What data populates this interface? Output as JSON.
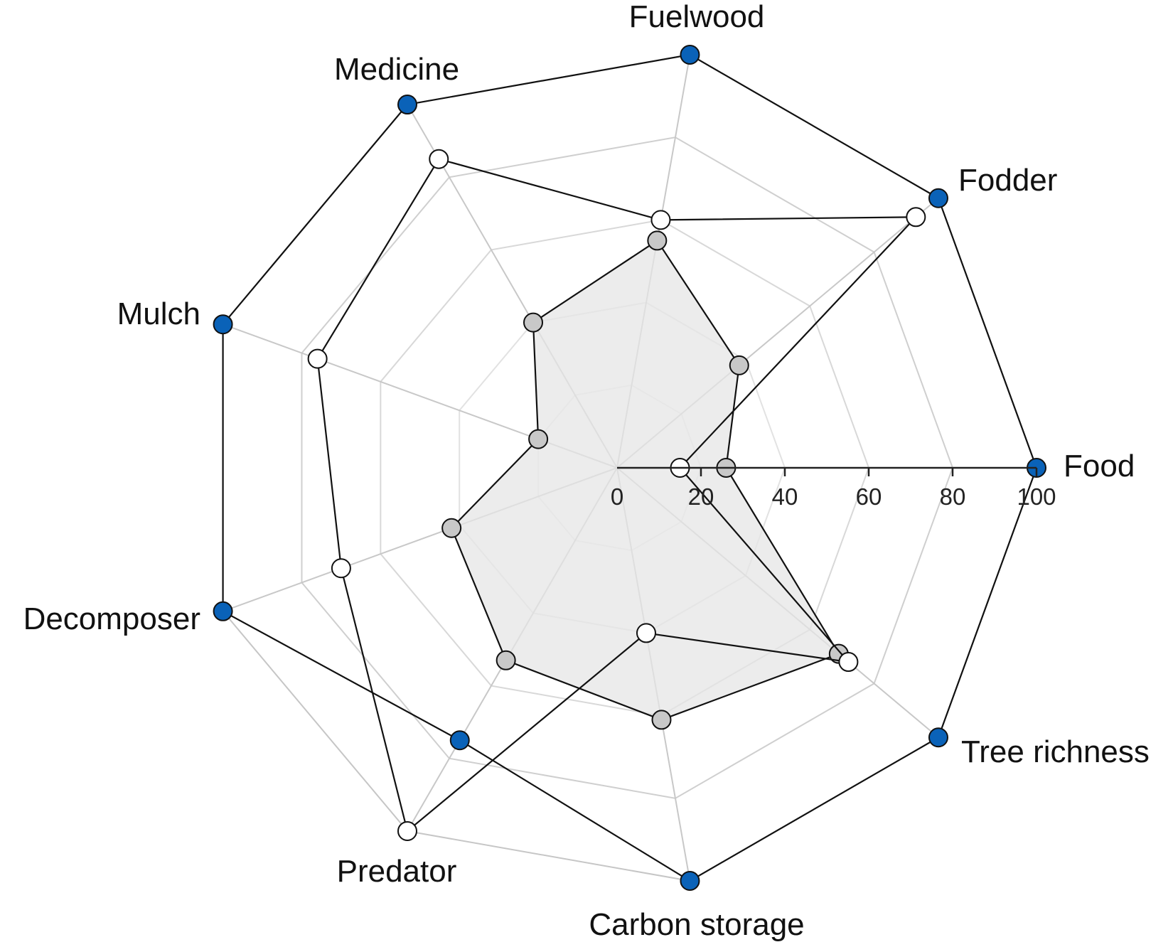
{
  "chart_data": {
    "type": "radar",
    "axes": [
      "Food",
      "Fodder",
      "Fuelwood",
      "Medicine",
      "Mulch",
      "Decomposer",
      "Predator",
      "Carbon storage",
      "Tree richness"
    ],
    "radial_ticks": [
      "0",
      "20",
      "40",
      "60",
      "80",
      "100"
    ],
    "rlim": [
      0,
      100
    ],
    "grid": true,
    "series": [
      {
        "values": [
          100,
          100,
          100,
          100,
          100,
          100,
          75,
          100,
          100
        ],
        "color": "#0a62b8",
        "fill": "none"
      },
      {
        "values": [
          15,
          93,
          60,
          85,
          76,
          70,
          100,
          40,
          72
        ],
        "color": "#ffffff",
        "fill": "none"
      },
      {
        "values": [
          26,
          38,
          55,
          40,
          20,
          42,
          53,
          61,
          69
        ],
        "color": "#c8c8c8",
        "fill": "#e6e6e6"
      }
    ]
  }
}
